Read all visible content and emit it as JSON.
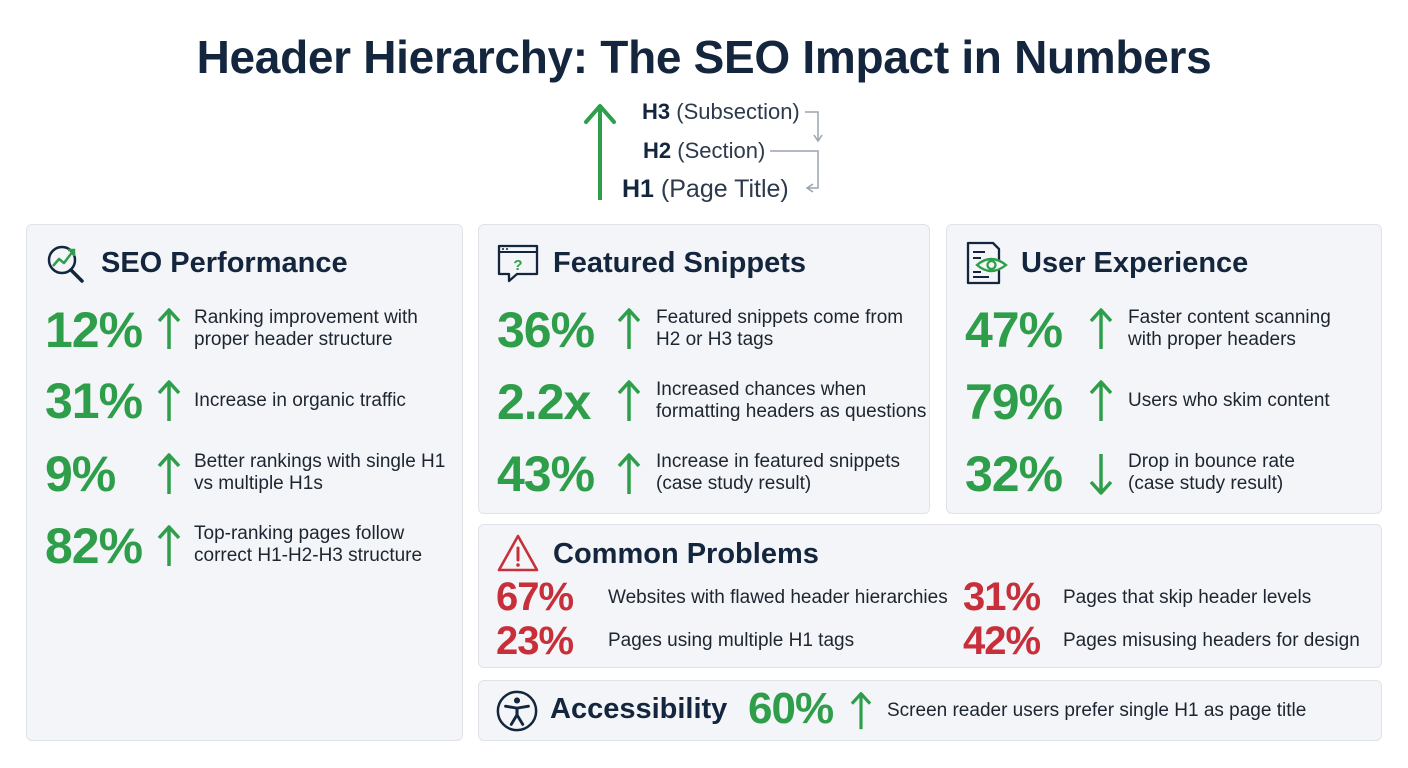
{
  "title": "Header Hierarchy: The SEO Impact in Numbers",
  "hierarchy": [
    {
      "tag": "H3",
      "label": "(Subsection)"
    },
    {
      "tag": "H2",
      "label": "(Section)"
    },
    {
      "tag": "H1",
      "label": "(Page Title)"
    }
  ],
  "colors": {
    "positive": "#2e9e4a",
    "negative": "#c7303a",
    "heading": "#14263d"
  },
  "seo": {
    "title": "SEO Performance",
    "icon": "magnifier-chart-icon",
    "stats": [
      {
        "value": "12%",
        "direction": "up",
        "desc1": "Ranking improvement with",
        "desc2": "proper header structure"
      },
      {
        "value": "31%",
        "direction": "up",
        "desc1": "Increase in organic traffic",
        "desc2": ""
      },
      {
        "value": "9%",
        "direction": "up",
        "desc1": "Better rankings with single H1",
        "desc2": "vs multiple H1s"
      },
      {
        "value": "82%",
        "direction": "up",
        "desc1": "Top-ranking pages follow",
        "desc2": "correct H1-H2-H3 structure"
      }
    ]
  },
  "snippets": {
    "title": "Featured Snippets",
    "icon": "question-window-icon",
    "stats": [
      {
        "value": "36%",
        "direction": "up",
        "desc1": "Featured snippets come from",
        "desc2": "H2 or H3 tags"
      },
      {
        "value": "2.2x",
        "direction": "up",
        "desc1": "Increased chances when",
        "desc2": "formatting headers as questions"
      },
      {
        "value": "43%",
        "direction": "up",
        "desc1": "Increase in featured snippets",
        "desc2": "(case study result)"
      }
    ]
  },
  "ux": {
    "title": "User Experience",
    "icon": "document-eye-icon",
    "stats": [
      {
        "value": "47%",
        "direction": "up",
        "desc1": "Faster content scanning",
        "desc2": "with proper headers"
      },
      {
        "value": "79%",
        "direction": "up",
        "desc1": "Users who skim content",
        "desc2": ""
      },
      {
        "value": "32%",
        "direction": "down",
        "desc1": "Drop in bounce rate",
        "desc2": "(case study result)"
      }
    ]
  },
  "problems": {
    "title": "Common Problems",
    "icon": "warning-triangle-icon",
    "items": [
      {
        "value": "67%",
        "desc": "Websites with flawed header hierarchies"
      },
      {
        "value": "31%",
        "desc": "Pages that skip header levels"
      },
      {
        "value": "23%",
        "desc": "Pages using multiple H1 tags"
      },
      {
        "value": "42%",
        "desc": "Pages misusing headers for design"
      }
    ]
  },
  "accessibility": {
    "title": "Accessibility",
    "icon": "accessibility-person-icon",
    "value": "60%",
    "direction": "up",
    "desc": "Screen reader users prefer single H1 as page title"
  }
}
